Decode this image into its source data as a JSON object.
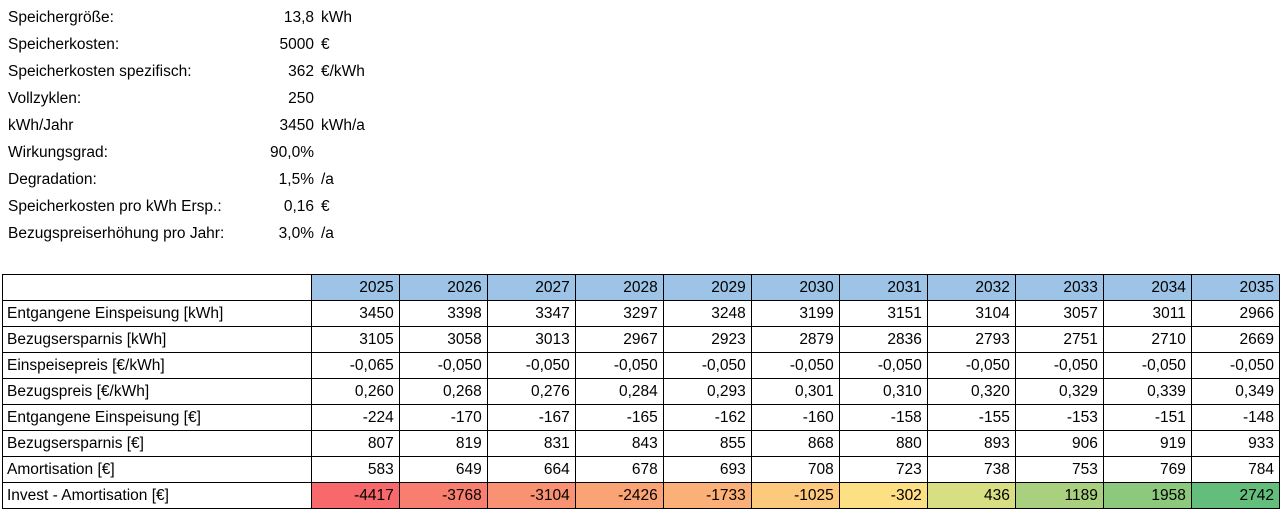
{
  "params": [
    {
      "label": "Speichergröße:",
      "value": "13,8",
      "unit": "kWh"
    },
    {
      "label": "Speicherkosten:",
      "value": "5000",
      "unit": "€"
    },
    {
      "label": "Speicherkosten spezifisch:",
      "value": "362",
      "unit": "€/kWh"
    },
    {
      "label": "Vollzyklen:",
      "value": "250",
      "unit": ""
    },
    {
      "label": "kWh/Jahr",
      "value": "3450",
      "unit": "kWh/a"
    },
    {
      "label": "Wirkungsgrad:",
      "value": "90,0%",
      "unit": ""
    },
    {
      "label": "Degradation:",
      "value": "1,5%",
      "unit": "/a"
    },
    {
      "label": "Speicherkosten pro kWh Ersp.:",
      "value": "0,16",
      "unit": "€"
    },
    {
      "label": "Bezugspreiserhöhung pro Jahr:",
      "value": "3,0%",
      "unit": "/a"
    }
  ],
  "table": {
    "header_fill": "#9DC3E6",
    "years": [
      "2025",
      "2026",
      "2027",
      "2028",
      "2029",
      "2030",
      "2031",
      "2032",
      "2033",
      "2034",
      "2035"
    ],
    "rows": [
      {
        "label": "Entgangene Einspeisung [kWh]",
        "values": [
          "3450",
          "3398",
          "3347",
          "3297",
          "3248",
          "3199",
          "3151",
          "3104",
          "3057",
          "3011",
          "2966"
        ]
      },
      {
        "label": "Bezugsersparnis [kWh]",
        "values": [
          "3105",
          "3058",
          "3013",
          "2967",
          "2923",
          "2879",
          "2836",
          "2793",
          "2751",
          "2710",
          "2669"
        ]
      },
      {
        "label": "Einspeisepreis [€/kWh]",
        "values": [
          "-0,065",
          "-0,050",
          "-0,050",
          "-0,050",
          "-0,050",
          "-0,050",
          "-0,050",
          "-0,050",
          "-0,050",
          "-0,050",
          "-0,050"
        ]
      },
      {
        "label": "Bezugspreis [€/kWh]",
        "values": [
          "0,260",
          "0,268",
          "0,276",
          "0,284",
          "0,293",
          "0,301",
          "0,310",
          "0,320",
          "0,329",
          "0,339",
          "0,349"
        ]
      },
      {
        "label": "Entgangene Einspeisung [€]",
        "values": [
          "-224",
          "-170",
          "-167",
          "-165",
          "-162",
          "-160",
          "-158",
          "-155",
          "-153",
          "-151",
          "-148"
        ]
      },
      {
        "label": "Bezugsersparnis [€]",
        "values": [
          "807",
          "819",
          "831",
          "843",
          "855",
          "868",
          "880",
          "893",
          "906",
          "919",
          "933"
        ]
      },
      {
        "label": "Amortisation [€]",
        "values": [
          "583",
          "649",
          "664",
          "678",
          "693",
          "708",
          "723",
          "738",
          "753",
          "769",
          "784"
        ]
      },
      {
        "label": "Invest - Amortisation [€]",
        "values": [
          "-4417",
          "-3768",
          "-3104",
          "-2426",
          "-1733",
          "-1025",
          "-302",
          "436",
          "1189",
          "1958",
          "2742"
        ],
        "cell_colors": [
          "#F8696B",
          "#F87F70",
          "#F99272",
          "#FAA375",
          "#FBB077",
          "#FCC97D",
          "#FDE083",
          "#D7DF82",
          "#A9D07E",
          "#8CC97D",
          "#63BE7B"
        ]
      }
    ]
  }
}
